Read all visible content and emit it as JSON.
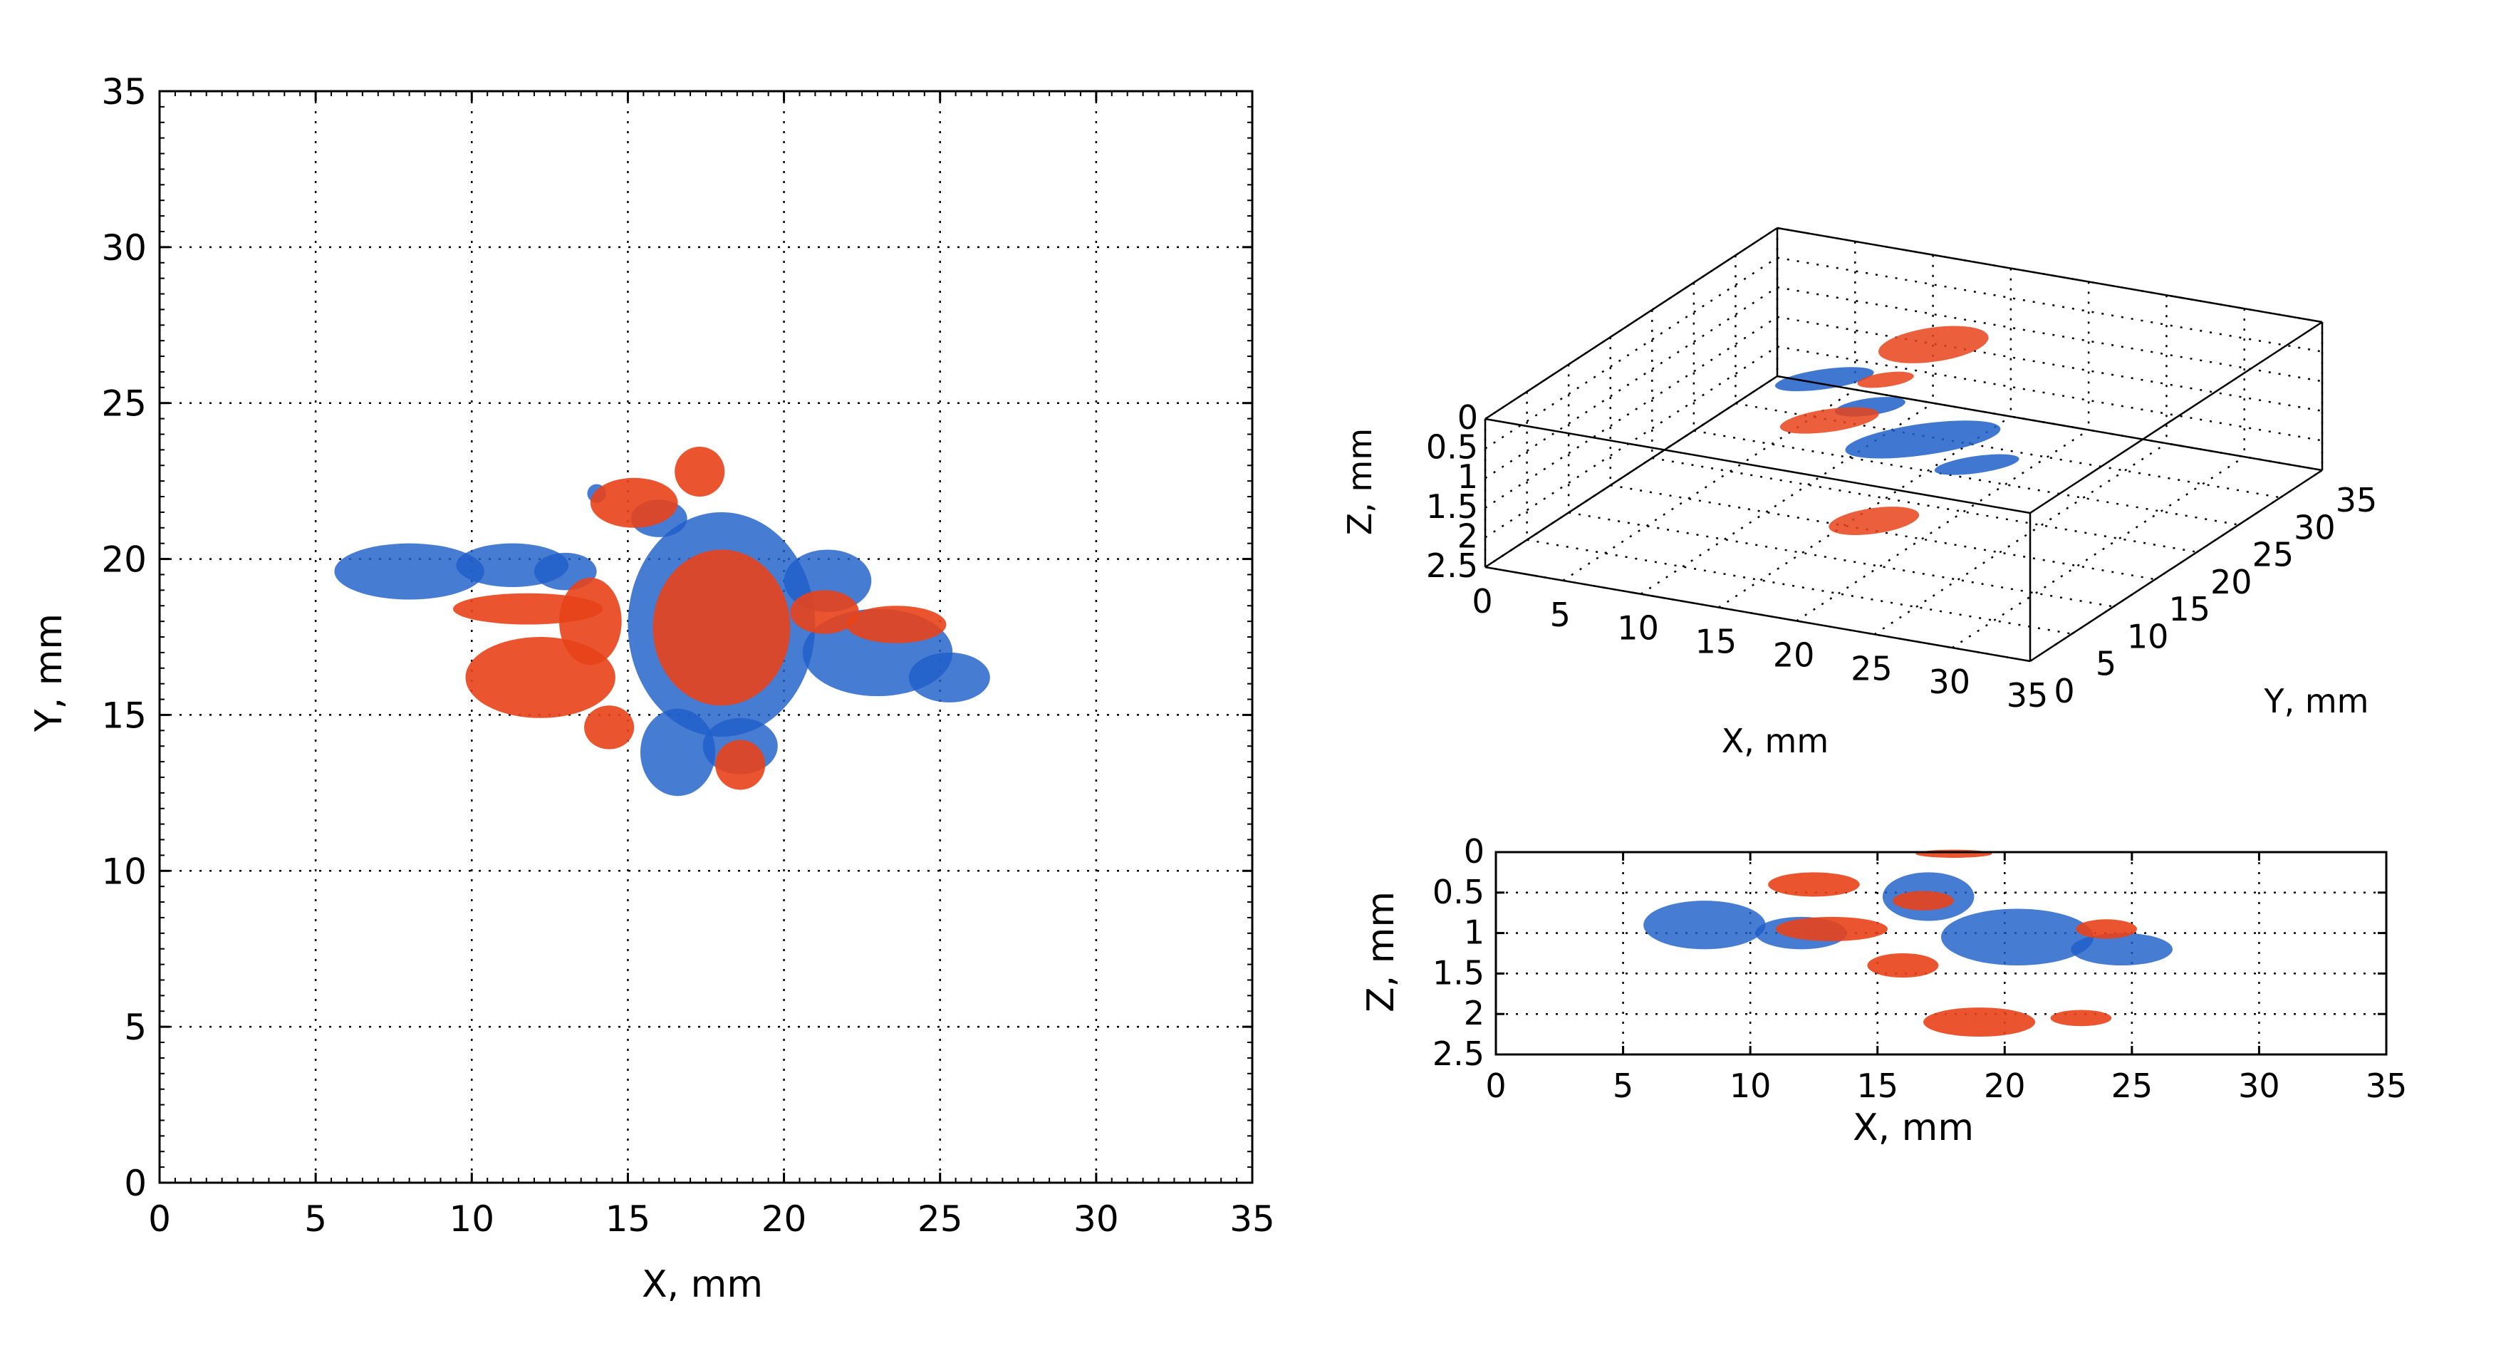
{
  "figure": {
    "panels": 3
  },
  "colors": {
    "series_a": "#e8431a",
    "series_b": "#1f5fc9",
    "series_b_light": "#7fa6e6",
    "overlap": "#9a2e4a",
    "axes": "#000000"
  },
  "chart_data": [
    {
      "id": "xy-view",
      "type": "scatter",
      "title": "",
      "xlabel": "X, mm",
      "ylabel": "Y, mm",
      "xlim": [
        0,
        35
      ],
      "ylim": [
        0,
        35
      ],
      "xticks": [
        0,
        5,
        10,
        15,
        20,
        25,
        30,
        35
      ],
      "yticks": [
        0,
        5,
        10,
        15,
        20,
        25,
        30,
        35
      ],
      "grid": true,
      "series": [
        {
          "name": "blue region",
          "color": "#1f5fc9",
          "blobs": [
            {
              "cx": 8.0,
              "cy": 19.6,
              "rx": 2.4,
              "ry": 0.9
            },
            {
              "cx": 11.3,
              "cy": 19.8,
              "rx": 1.8,
              "ry": 0.7
            },
            {
              "cx": 13.0,
              "cy": 19.6,
              "rx": 1.0,
              "ry": 0.6
            },
            {
              "cx": 18.0,
              "cy": 17.9,
              "rx": 3.0,
              "ry": 3.6
            },
            {
              "cx": 23.0,
              "cy": 17.0,
              "rx": 2.4,
              "ry": 1.4
            },
            {
              "cx": 25.3,
              "cy": 16.2,
              "rx": 1.3,
              "ry": 0.8
            },
            {
              "cx": 16.6,
              "cy": 13.8,
              "rx": 1.2,
              "ry": 1.4
            },
            {
              "cx": 18.6,
              "cy": 14.0,
              "rx": 1.2,
              "ry": 0.9
            },
            {
              "cx": 21.4,
              "cy": 19.3,
              "rx": 1.4,
              "ry": 1.0
            },
            {
              "cx": 16.0,
              "cy": 21.3,
              "rx": 0.9,
              "ry": 0.6
            },
            {
              "cx": 14.0,
              "cy": 22.1,
              "rx": 0.3,
              "ry": 0.3
            }
          ]
        },
        {
          "name": "orange region",
          "color": "#e8431a",
          "blobs": [
            {
              "cx": 18.0,
              "cy": 17.8,
              "rx": 2.2,
              "ry": 2.5
            },
            {
              "cx": 12.2,
              "cy": 16.2,
              "rx": 2.4,
              "ry": 1.3
            },
            {
              "cx": 11.8,
              "cy": 18.4,
              "rx": 2.4,
              "ry": 0.5
            },
            {
              "cx": 13.8,
              "cy": 18.0,
              "rx": 1.0,
              "ry": 1.4
            },
            {
              "cx": 15.2,
              "cy": 21.8,
              "rx": 1.4,
              "ry": 0.8
            },
            {
              "cx": 17.3,
              "cy": 22.8,
              "rx": 0.8,
              "ry": 0.8
            },
            {
              "cx": 21.3,
              "cy": 18.3,
              "rx": 1.1,
              "ry": 0.7
            },
            {
              "cx": 23.6,
              "cy": 17.9,
              "rx": 1.6,
              "ry": 0.6
            },
            {
              "cx": 18.6,
              "cy": 13.4,
              "rx": 0.8,
              "ry": 0.8
            },
            {
              "cx": 14.4,
              "cy": 14.6,
              "rx": 0.8,
              "ry": 0.7
            }
          ]
        }
      ]
    },
    {
      "id": "3d-view",
      "type": "scatter",
      "title": "",
      "xlabel": "X, mm",
      "ylabel": "Y, mm",
      "zlabel": "Z, mm",
      "xlim": [
        0,
        35
      ],
      "ylim": [
        0,
        35
      ],
      "zlim": [
        0,
        2.5
      ],
      "xticks": [
        "0",
        "5",
        "10",
        "15",
        "20",
        "25",
        "30",
        "35"
      ],
      "yticks": [
        "0",
        "5",
        "10",
        "15",
        "20",
        "25",
        "30",
        "35"
      ],
      "zticks": [
        "0",
        "0.5",
        "1",
        "1.5",
        "2",
        "2.5"
      ],
      "grid": true
    },
    {
      "id": "xz-view",
      "type": "scatter",
      "title": "",
      "xlabel": "X, mm",
      "ylabel": "Z, mm",
      "xlim": [
        0,
        35
      ],
      "ylim": [
        0,
        2.5
      ],
      "xticks": [
        0,
        5,
        10,
        15,
        20,
        25,
        30,
        35
      ],
      "yticks": [
        "0",
        "0.5",
        "1",
        "1.5",
        "2",
        "2.5"
      ],
      "grid": true,
      "series": [
        {
          "name": "blue region",
          "color": "#1f5fc9",
          "blobs": [
            {
              "cx": 8.2,
              "cy": 0.9,
              "rx": 2.4,
              "ry": 0.3
            },
            {
              "cx": 12.0,
              "cy": 1.0,
              "rx": 1.8,
              "ry": 0.2
            },
            {
              "cx": 17.0,
              "cy": 0.55,
              "rx": 1.8,
              "ry": 0.3
            },
            {
              "cx": 20.5,
              "cy": 1.05,
              "rx": 3.0,
              "ry": 0.35
            },
            {
              "cx": 24.6,
              "cy": 1.2,
              "rx": 2.0,
              "ry": 0.2
            }
          ]
        },
        {
          "name": "orange region",
          "color": "#e8431a",
          "blobs": [
            {
              "cx": 12.5,
              "cy": 0.4,
              "rx": 1.8,
              "ry": 0.15
            },
            {
              "cx": 13.2,
              "cy": 0.95,
              "rx": 2.2,
              "ry": 0.15
            },
            {
              "cx": 16.8,
              "cy": 0.6,
              "rx": 1.2,
              "ry": 0.12
            },
            {
              "cx": 16.0,
              "cy": 1.4,
              "rx": 1.4,
              "ry": 0.15
            },
            {
              "cx": 19.0,
              "cy": 2.1,
              "rx": 2.2,
              "ry": 0.18
            },
            {
              "cx": 23.0,
              "cy": 2.05,
              "rx": 1.2,
              "ry": 0.1
            },
            {
              "cx": 24.0,
              "cy": 0.95,
              "rx": 1.2,
              "ry": 0.12
            },
            {
              "cx": 18.0,
              "cy": 0.02,
              "rx": 1.5,
              "ry": 0.05
            }
          ]
        }
      ]
    }
  ]
}
